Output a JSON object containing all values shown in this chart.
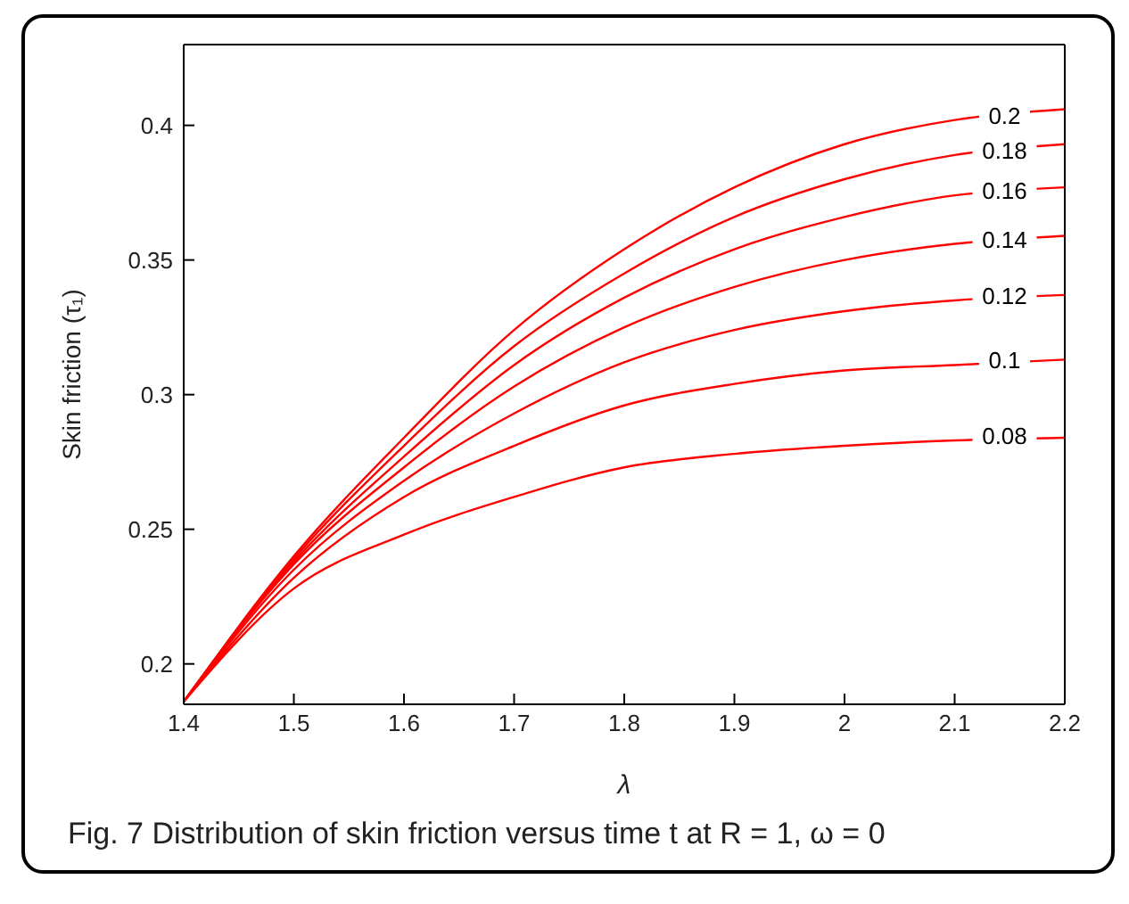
{
  "chart_data": {
    "type": "line",
    "xlabel": "λ",
    "ylabel": "Skin friction (τ₁)",
    "annotations": [
      "Fig. 7 Distribution of skin friction versus time t at R = 1, ω = 0"
    ],
    "x": [
      1.4,
      1.5,
      1.6,
      1.7,
      1.8,
      1.9,
      2.0,
      2.1,
      2.2
    ],
    "series": [
      {
        "name": "0.08",
        "color": "#ff0000",
        "values": [
          0.186,
          0.228,
          0.248,
          0.262,
          0.273,
          0.278,
          0.281,
          0.283,
          0.284
        ]
      },
      {
        "name": "0.1",
        "color": "#ff0000",
        "values": [
          0.186,
          0.232,
          0.262,
          0.281,
          0.296,
          0.304,
          0.309,
          0.311,
          0.313
        ]
      },
      {
        "name": "0.12",
        "color": "#ff0000",
        "values": [
          0.186,
          0.235,
          0.268,
          0.293,
          0.312,
          0.324,
          0.331,
          0.335,
          0.337
        ]
      },
      {
        "name": "0.14",
        "color": "#ff0000",
        "values": [
          0.186,
          0.237,
          0.273,
          0.303,
          0.325,
          0.34,
          0.35,
          0.356,
          0.359
        ]
      },
      {
        "name": "0.16",
        "color": "#ff0000",
        "values": [
          0.186,
          0.238,
          0.277,
          0.311,
          0.336,
          0.354,
          0.366,
          0.374,
          0.377
        ]
      },
      {
        "name": "0.18",
        "color": "#ff0000",
        "values": [
          0.186,
          0.239,
          0.281,
          0.318,
          0.345,
          0.366,
          0.38,
          0.389,
          0.393
        ]
      },
      {
        "name": "0.2",
        "color": "#ff0000",
        "values": [
          0.186,
          0.24,
          0.284,
          0.324,
          0.354,
          0.377,
          0.393,
          0.402,
          0.406
        ]
      }
    ],
    "xlim": [
      1.4,
      2.2
    ],
    "xticks": [
      1.4,
      1.5,
      1.6,
      1.7,
      1.8,
      1.9,
      2,
      2.1,
      2.2
    ],
    "ylim": [
      0.185,
      0.43
    ],
    "yticks": [
      0.2,
      0.25,
      0.3,
      0.35,
      0.4
    ],
    "grid": false,
    "legend": false,
    "marker": "none",
    "line_style": "solid"
  }
}
